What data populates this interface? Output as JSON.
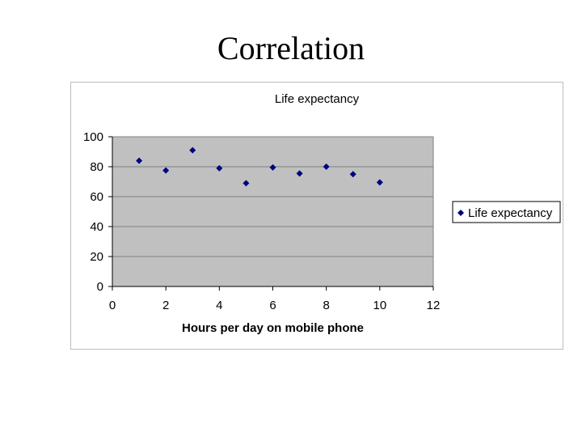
{
  "slide": {
    "title": "Correlation"
  },
  "colors": {
    "plot_background": "#c0c0c0",
    "gridline": "#808080",
    "marker": "#000080",
    "frame_border": "#bdbdbd"
  },
  "chart_data": {
    "type": "scatter",
    "title": "Life expectancy",
    "xlabel": "Hours per day on mobile phone",
    "ylabel": "",
    "xlim": [
      0,
      12
    ],
    "ylim": [
      0,
      100
    ],
    "x_ticks": [
      0,
      2,
      4,
      6,
      8,
      10,
      12
    ],
    "y_ticks": [
      0,
      20,
      40,
      60,
      80,
      100
    ],
    "grid": "horizontal",
    "legend_position": "right",
    "marker": "diamond",
    "series": [
      {
        "name": "Life expectancy",
        "x": [
          1,
          2,
          3,
          4,
          5,
          6,
          7,
          8,
          9,
          10
        ],
        "y": [
          84,
          77.5,
          91,
          79,
          69,
          79.5,
          75.5,
          80,
          75,
          69.5
        ]
      }
    ]
  }
}
